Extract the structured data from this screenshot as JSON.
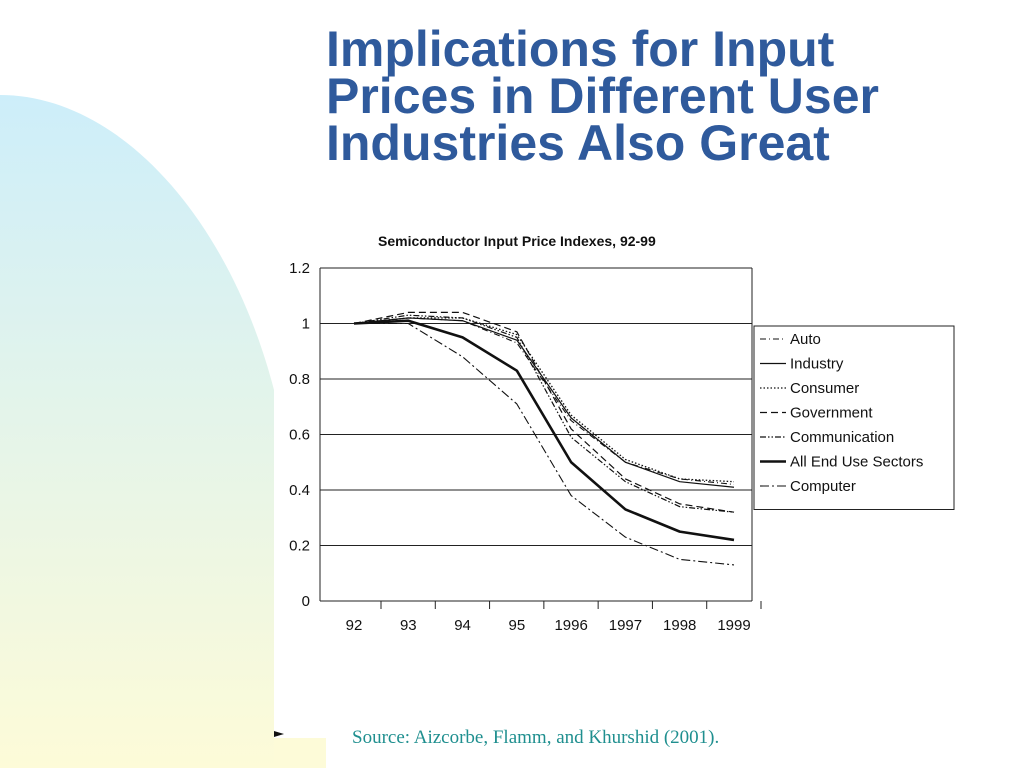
{
  "slide": {
    "title_lines": [
      "Implications for Input",
      "Prices in Different User",
      "Industries Also Great"
    ],
    "source": "Source: Aizcorbe, Flamm, and Khurshid (2001).",
    "colors": {
      "title": "#2f5a9c",
      "source": "#1f8f8f",
      "bg_top": "#cdeefa",
      "bg_bottom": "#fdfbd8"
    }
  },
  "chart_data": {
    "type": "line",
    "title": "Semiconductor Input Price Indexes, 92-99",
    "xlabel": "",
    "ylabel": "",
    "categories": [
      "92",
      "93",
      "94",
      "95",
      "1996",
      "1997",
      "1998",
      "1999"
    ],
    "ylim": [
      0,
      1.2
    ],
    "yticks": [
      "0",
      "0.2",
      "0.4",
      "0.6",
      "0.8",
      "1",
      "1.2"
    ],
    "grid": true,
    "legend_position": "right",
    "series": [
      {
        "name": "Auto",
        "style": "dashdot",
        "values": [
          1.0,
          1.02,
          1.01,
          0.93,
          0.65,
          0.5,
          0.44,
          0.42
        ]
      },
      {
        "name": "Industry",
        "style": "solid",
        "values": [
          1.0,
          1.02,
          1.01,
          0.94,
          0.66,
          0.5,
          0.43,
          0.41
        ]
      },
      {
        "name": "Consumer",
        "style": "dotted",
        "values": [
          1.0,
          1.02,
          1.02,
          0.96,
          0.67,
          0.51,
          0.44,
          0.43
        ]
      },
      {
        "name": "Government",
        "style": "dashed",
        "values": [
          1.0,
          1.04,
          1.04,
          0.97,
          0.62,
          0.44,
          0.35,
          0.32
        ]
      },
      {
        "name": "Communication",
        "style": "dashdotdot",
        "values": [
          1.0,
          1.03,
          1.02,
          0.95,
          0.59,
          0.43,
          0.34,
          0.32
        ]
      },
      {
        "name": "All End Use Sectors",
        "style": "bold",
        "values": [
          1.0,
          1.01,
          0.95,
          0.83,
          0.5,
          0.33,
          0.25,
          0.22
        ]
      },
      {
        "name": "Computer",
        "style": "longdashdot",
        "values": [
          1.0,
          1.0,
          0.88,
          0.71,
          0.38,
          0.23,
          0.15,
          0.13
        ]
      }
    ]
  }
}
